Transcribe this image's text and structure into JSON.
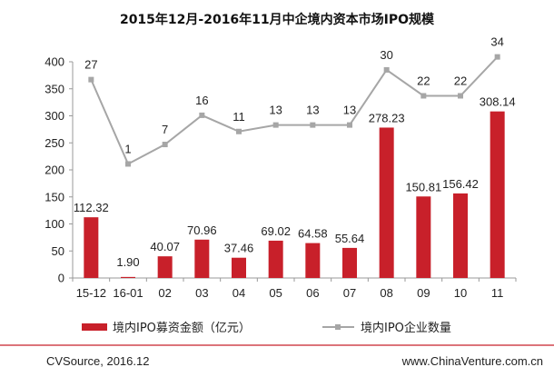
{
  "chart_data": {
    "type": "bar",
    "title": "2015年12月-2016年11月中企境内资本市场IPO规模",
    "categories": [
      "15-12",
      "16-01",
      "02",
      "03",
      "04",
      "05",
      "06",
      "07",
      "08",
      "09",
      "10",
      "11"
    ],
    "series": [
      {
        "name": "境内IPO募资金额（亿元）",
        "type": "bar",
        "color": "#c8202a",
        "values": [
          112.32,
          1.9,
          40.07,
          70.96,
          37.46,
          69.02,
          64.58,
          55.64,
          278.23,
          150.81,
          156.42,
          308.14
        ],
        "labels": [
          "112.32",
          "1.90",
          "40.07",
          "70.96",
          "37.46",
          "69.02",
          "64.58",
          "55.64",
          "278.23",
          "150.81",
          "156.42",
          "308.14"
        ]
      },
      {
        "name": "境内IPO企业数量",
        "type": "line",
        "color": "#a6a6a6",
        "values": [
          27,
          1,
          7,
          16,
          11,
          13,
          13,
          13,
          30,
          22,
          22,
          34
        ],
        "labels": [
          "27",
          "1",
          "7",
          "16",
          "11",
          "13",
          "13",
          "13",
          "30",
          "22",
          "22",
          "34"
        ]
      }
    ],
    "yaxis": {
      "ticks": [
        0,
        50,
        100,
        150,
        200,
        250,
        300,
        350,
        400
      ],
      "tick_labels": [
        "0",
        "50",
        "100",
        "150",
        "200",
        "250",
        "300",
        "350",
        "400"
      ],
      "ylim": [
        0,
        400
      ]
    },
    "xlabel": "",
    "ylabel": ""
  },
  "footer": {
    "source": "CVSource, 2016.12",
    "website": "www.ChinaVenture.com.cn"
  },
  "colors": {
    "accent_red": "#c8202a",
    "line_gray": "#a6a6a6",
    "axis": "#999999"
  }
}
